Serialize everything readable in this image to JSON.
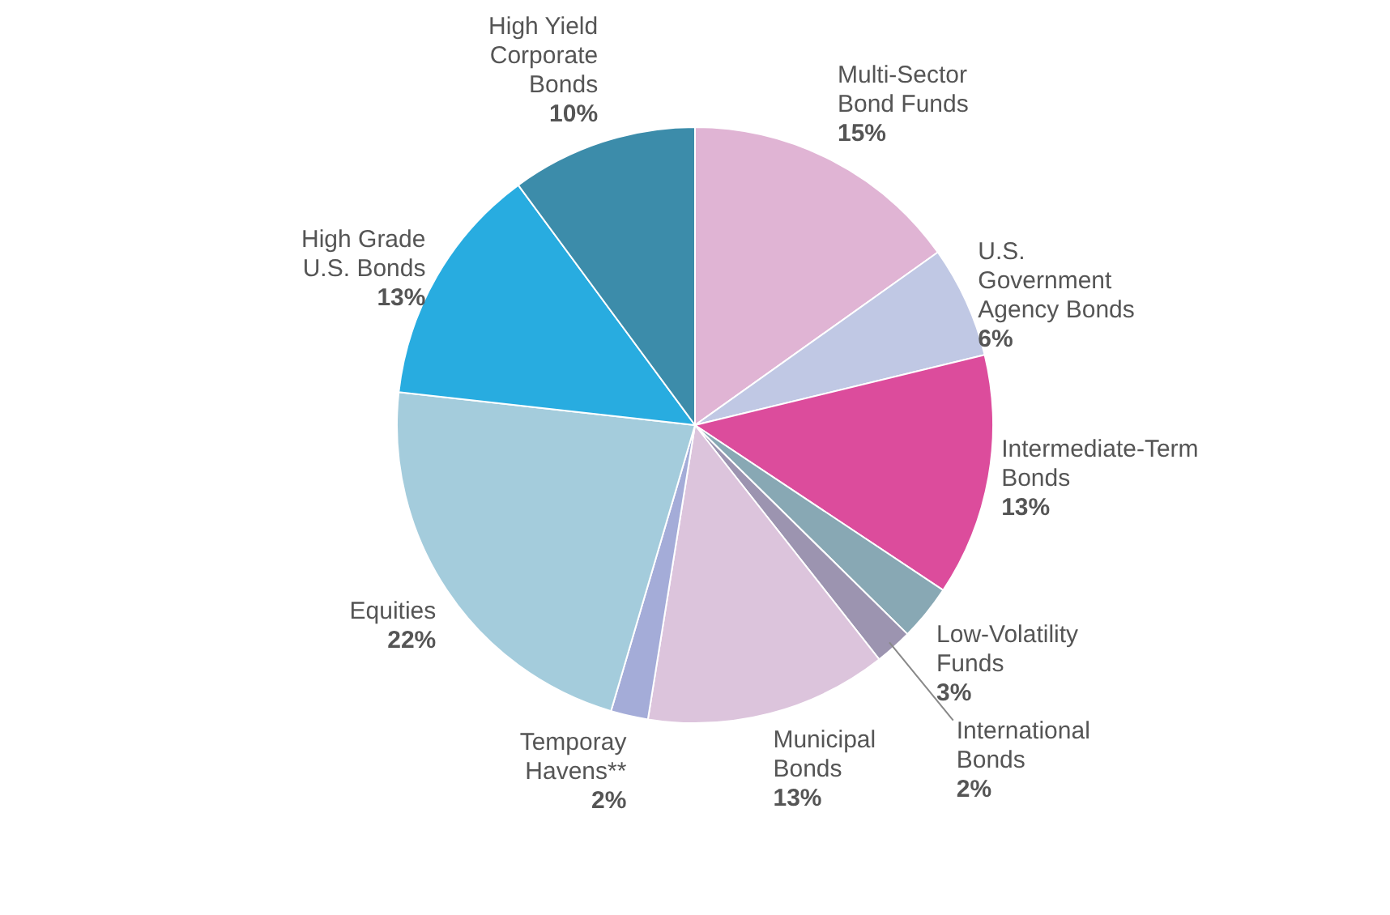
{
  "chart_data": {
    "type": "pie",
    "categories": [
      "Multi-Sector Bond Funds",
      "U.S. Government Agency Bonds",
      "Intermediate-Term Bonds",
      "Low-Volatility Funds",
      "International Bonds",
      "Municipal Bonds",
      "Temporay Havens**",
      "Equities",
      "High Grade U.S. Bonds",
      "High Yield Corporate Bonds"
    ],
    "values": [
      15,
      6,
      13,
      3,
      2,
      13,
      2,
      22,
      13,
      10
    ],
    "value_labels": [
      "15%",
      "6%",
      "13%",
      "3%",
      "2%",
      "13%",
      "2%",
      "22%",
      "13%",
      "10%"
    ],
    "colors": [
      "#e0b4d4",
      "#c0c8e4",
      "#dc4c9c",
      "#88a8b4",
      "#9c94b0",
      "#dcc4dc",
      "#a4acd8",
      "#a4ccdc",
      "#28ace0",
      "#3c8caa"
    ],
    "legend": false
  }
}
